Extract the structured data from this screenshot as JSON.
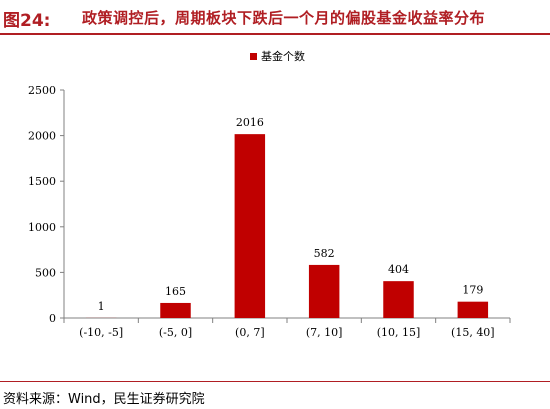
{
  "header": {
    "figure_label": "图24:",
    "title": "政策调控后，周期板块下跌后一个月的偏股基金收益率分布"
  },
  "source": "资料来源：Wind，民生证券研究院",
  "colors": {
    "accent": "#b01e23",
    "bar": "#c00000"
  },
  "chart_data": {
    "type": "bar",
    "title": "",
    "xlabel": "",
    "ylabel": "",
    "categories": [
      "(-10, -5]",
      "(-5, 0]",
      "(0, 7]",
      "(7, 10]",
      "(10, 15]",
      "(15, 40]"
    ],
    "series": [
      {
        "name": "基金个数",
        "values": [
          1,
          165,
          2016,
          582,
          404,
          179
        ]
      }
    ],
    "ylim": [
      0,
      2500
    ],
    "yticks": [
      0,
      500,
      1000,
      1500,
      2000,
      2500
    ],
    "grid": false,
    "legend_position": "top-center",
    "data_labels": true
  }
}
